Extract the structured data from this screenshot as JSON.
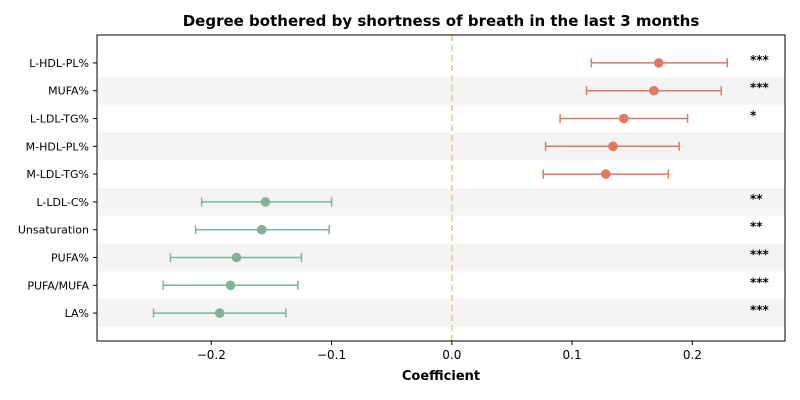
{
  "chart_data": {
    "type": "forest",
    "title": "Degree bothered by shortness of breath in the last 3 months",
    "xlabel": "Coefficient",
    "ylabel": "",
    "xlim": [
      -0.295,
      0.277
    ],
    "xticks": [
      -0.2,
      -0.1,
      0.0,
      0.1,
      0.2
    ],
    "xtick_labels": [
      "−0.2",
      "−0.1",
      "0.0",
      "0.1",
      "0.2"
    ],
    "reference_line": {
      "x": 0.0,
      "style": "dashed",
      "color": "#f7c07a"
    },
    "row_stripes": {
      "color": "#f4f4f4",
      "pattern": "alternate"
    },
    "colors": {
      "positive": "#e07a5f",
      "negative": "#81b29a"
    },
    "rows": [
      {
        "label": "L-HDL-PL%",
        "coef": 0.172,
        "lower": 0.116,
        "upper": 0.229,
        "sig": "***"
      },
      {
        "label": "MUFA%",
        "coef": 0.168,
        "lower": 0.112,
        "upper": 0.224,
        "sig": "***"
      },
      {
        "label": "L-LDL-TG%",
        "coef": 0.143,
        "lower": 0.09,
        "upper": 0.196,
        "sig": "*"
      },
      {
        "label": "M-HDL-PL%",
        "coef": 0.134,
        "lower": 0.078,
        "upper": 0.189,
        "sig": ""
      },
      {
        "label": "M-LDL-TG%",
        "coef": 0.128,
        "lower": 0.076,
        "upper": 0.18,
        "sig": ""
      },
      {
        "label": "L-LDL-C%",
        "coef": -0.155,
        "lower": -0.208,
        "upper": -0.1,
        "sig": "**"
      },
      {
        "label": "Unsaturation",
        "coef": -0.158,
        "lower": -0.213,
        "upper": -0.102,
        "sig": "**"
      },
      {
        "label": "PUFA%",
        "coef": -0.179,
        "lower": -0.234,
        "upper": -0.125,
        "sig": "***"
      },
      {
        "label": "PUFA/MUFA",
        "coef": -0.184,
        "lower": -0.24,
        "upper": -0.128,
        "sig": "***"
      },
      {
        "label": "LA%",
        "coef": -0.193,
        "lower": -0.248,
        "upper": -0.138,
        "sig": "***"
      }
    ]
  }
}
